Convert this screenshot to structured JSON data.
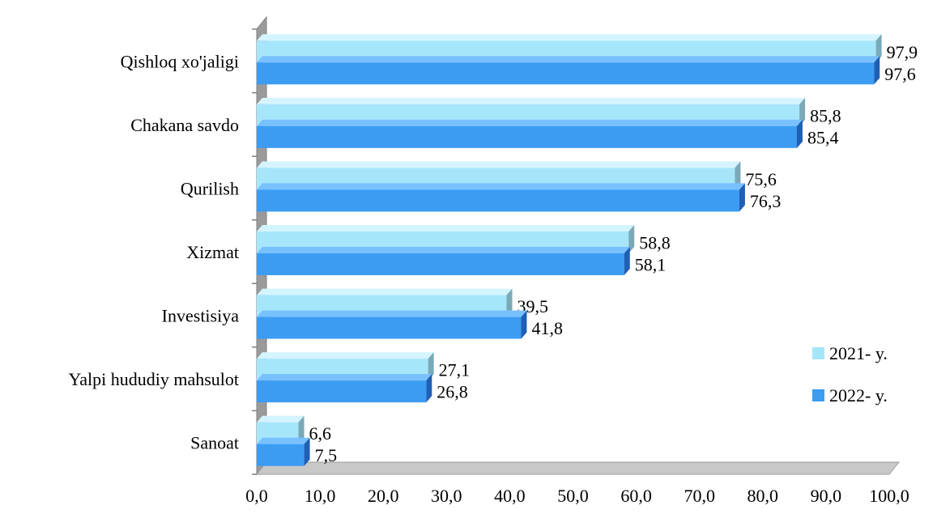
{
  "colors": {
    "series_2021": "#a6e6fb",
    "series_2021_top": "#d4f4ff",
    "series_2021_side": "#7aa9b8",
    "series_2022": "#3b9cf2",
    "series_2022_top": "#79c0ff",
    "series_2022_side": "#1f5fb5",
    "wall": "#ffffff",
    "wall_edge": "#808080",
    "floor": "#c8c8c8"
  },
  "chart_data": {
    "type": "bar",
    "orientation": "horizontal",
    "style": "3d",
    "categories": [
      "Qishloq xo'jaligi",
      "Chakana savdo",
      "Qurilish",
      "Xizmat",
      "Investisiya",
      "Yalpi hududiy mahsulot",
      "Sanoat"
    ],
    "series": [
      {
        "name": "2021- y.",
        "values": [
          97.9,
          85.8,
          75.6,
          58.8,
          39.5,
          27.1,
          6.6
        ],
        "labels": [
          "97,9",
          "85,8",
          "75,6",
          "58,8",
          "39,5",
          "27,1",
          "6,6"
        ]
      },
      {
        "name": "2022- y.",
        "values": [
          97.6,
          85.4,
          76.3,
          58.1,
          41.8,
          26.8,
          7.5
        ],
        "labels": [
          "97,6",
          "85,4",
          "76,3",
          "58,1",
          "41,8",
          "26,8",
          "7,5"
        ]
      }
    ],
    "xlim": [
      0,
      100
    ],
    "xticks": [
      0,
      10,
      20,
      30,
      40,
      50,
      60,
      70,
      80,
      90,
      100
    ],
    "xtick_labels": [
      "0,0",
      "10,0",
      "20,0",
      "30,0",
      "40,0",
      "50,0",
      "60,0",
      "70,0",
      "80,0",
      "90,0",
      "100,0"
    ],
    "grid": false,
    "legend_position": "right"
  }
}
